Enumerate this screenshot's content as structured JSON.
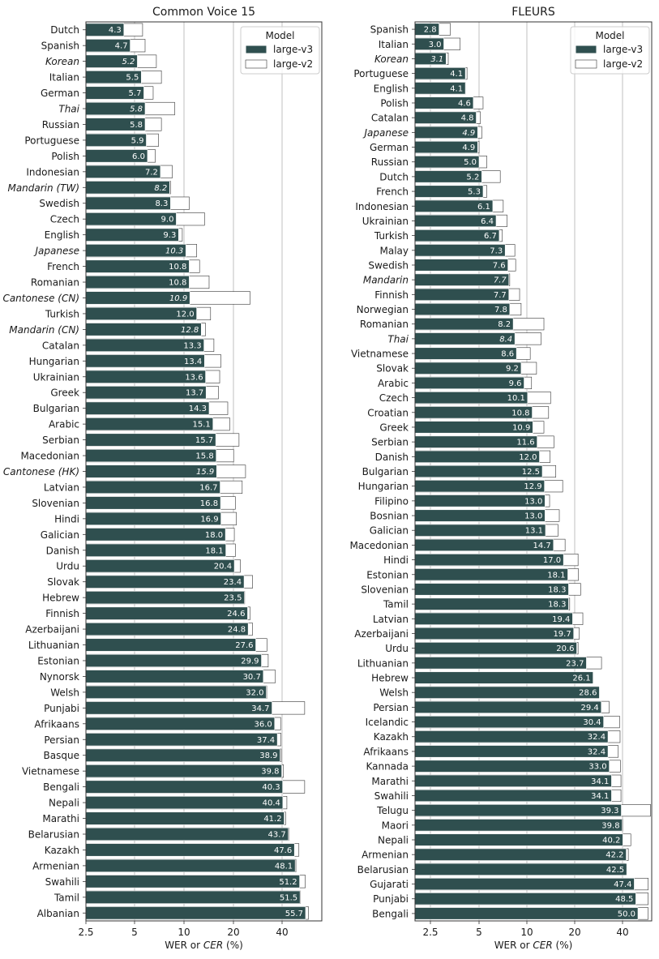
{
  "legend_title": "Model",
  "colors": {
    "large_v3": "#2f4f4f",
    "large_v2": "#ffffff",
    "edge": "#333333",
    "grid": "#b0b0b0"
  },
  "chart_data": [
    {
      "type": "bar",
      "orientation": "horizontal",
      "title": "Common Voice 15",
      "xlabel_plain": "WER or ",
      "xlabel_italic": "CER",
      "xlabel_suffix": " (%)",
      "xscale": "log",
      "xlim": [
        2.5,
        55
      ],
      "xticks": [
        2.5,
        5,
        10,
        20,
        40
      ],
      "xtick_labels": [
        "2.5",
        "5",
        "10",
        "20",
        "40"
      ],
      "grid": "vertical lines at x ticks",
      "legend": {
        "title": "Model",
        "placement": "top-right",
        "entries": [
          "large-v3",
          "large-v2"
        ]
      },
      "series": [
        {
          "name": "large-v3",
          "values": [
            4.3,
            4.7,
            5.2,
            5.5,
            5.7,
            5.8,
            5.8,
            5.9,
            6.0,
            7.2,
            8.2,
            8.3,
            9.0,
            9.3,
            10.3,
            10.8,
            10.8,
            10.9,
            12.0,
            12.8,
            13.3,
            13.4,
            13.6,
            13.7,
            14.3,
            15.1,
            15.7,
            15.8,
            15.9,
            16.7,
            16.8,
            16.9,
            18.0,
            18.1,
            20.4,
            23.4,
            23.5,
            24.6,
            24.8,
            27.6,
            29.9,
            30.7,
            32.0,
            34.7,
            36.0,
            37.4,
            38.9,
            39.8,
            40.3,
            40.4,
            41.2,
            43.7,
            47.6,
            48.1,
            51.2,
            51.5,
            55.7
          ]
        },
        {
          "name": "large-v2",
          "values": [
            5.6,
            5.8,
            6.8,
            7.3,
            6.5,
            8.8,
            7.3,
            7.0,
            6.7,
            8.5,
            8.3,
            10.8,
            13.4,
            9.8,
            12.0,
            12.5,
            14.3,
            25.5,
            14.6,
            13.6,
            15.3,
            16.9,
            16.6,
            16.3,
            18.6,
            19.1,
            21.8,
            20.2,
            23.9,
            22.8,
            20.7,
            21.0,
            20.4,
            20.7,
            22.2,
            26.4,
            23.6,
            25.5,
            26.3,
            32.3,
            32.9,
            36.4,
            32.2,
            55.0,
            39.2,
            39.4,
            39.5,
            40.8,
            55.0,
            42.8,
            42.0,
            43.9,
            50.7,
            48.6,
            55.5,
            51.7,
            58.0
          ]
        },
        {
          "name": "",
          "values": [
            0,
            0,
            1,
            0,
            0,
            1,
            0,
            0,
            0,
            0,
            1,
            0,
            0,
            0,
            1,
            0,
            0,
            1,
            0,
            1,
            0,
            0,
            0,
            0,
            0,
            0,
            0,
            0,
            1,
            0,
            0,
            0,
            0,
            0,
            0,
            0,
            0,
            0,
            0,
            0,
            0,
            0,
            0,
            0,
            0,
            0,
            0,
            0,
            0,
            0,
            0,
            0,
            0,
            0,
            0,
            0,
            0
          ]
        }
      ],
      "categories": [
        {
          "name": "Dutch",
          "suffix": ""
        },
        {
          "name": "Spanish",
          "suffix": ""
        },
        {
          "name": "Korean",
          "suffix": ""
        },
        {
          "name": "Italian",
          "suffix": ""
        },
        {
          "name": "German",
          "suffix": ""
        },
        {
          "name": "Thai",
          "suffix": ""
        },
        {
          "name": "Russian",
          "suffix": ""
        },
        {
          "name": "Portuguese",
          "suffix": ""
        },
        {
          "name": "Polish",
          "suffix": ""
        },
        {
          "name": "Indonesian",
          "suffix": ""
        },
        {
          "name": "Mandarin",
          "suffix": "(TW)"
        },
        {
          "name": "Swedish",
          "suffix": ""
        },
        {
          "name": "Czech",
          "suffix": ""
        },
        {
          "name": "English",
          "suffix": ""
        },
        {
          "name": "Japanese",
          "suffix": ""
        },
        {
          "name": "French",
          "suffix": ""
        },
        {
          "name": "Romanian",
          "suffix": ""
        },
        {
          "name": "Cantonese",
          "suffix": "(CN)"
        },
        {
          "name": "Turkish",
          "suffix": ""
        },
        {
          "name": "Mandarin",
          "suffix": "(CN)"
        },
        {
          "name": "Catalan",
          "suffix": ""
        },
        {
          "name": "Hungarian",
          "suffix": ""
        },
        {
          "name": "Ukrainian",
          "suffix": ""
        },
        {
          "name": "Greek",
          "suffix": ""
        },
        {
          "name": "Bulgarian",
          "suffix": ""
        },
        {
          "name": "Arabic",
          "suffix": ""
        },
        {
          "name": "Serbian",
          "suffix": ""
        },
        {
          "name": "Macedonian",
          "suffix": ""
        },
        {
          "name": "Cantonese",
          "suffix": "(HK)"
        },
        {
          "name": "Latvian",
          "suffix": ""
        },
        {
          "name": "Slovenian",
          "suffix": ""
        },
        {
          "name": "Hindi",
          "suffix": ""
        },
        {
          "name": "Galician",
          "suffix": ""
        },
        {
          "name": "Danish",
          "suffix": ""
        },
        {
          "name": "Urdu",
          "suffix": ""
        },
        {
          "name": "Slovak",
          "suffix": ""
        },
        {
          "name": "Hebrew",
          "suffix": ""
        },
        {
          "name": "Finnish",
          "suffix": ""
        },
        {
          "name": "Azerbaijani",
          "suffix": ""
        },
        {
          "name": "Lithuanian",
          "suffix": ""
        },
        {
          "name": "Estonian",
          "suffix": ""
        },
        {
          "name": "Nynorsk",
          "suffix": ""
        },
        {
          "name": "Welsh",
          "suffix": ""
        },
        {
          "name": "Punjabi",
          "suffix": ""
        },
        {
          "name": "Afrikaans",
          "suffix": ""
        },
        {
          "name": "Persian",
          "suffix": ""
        },
        {
          "name": "Basque",
          "suffix": ""
        },
        {
          "name": "Vietnamese",
          "suffix": ""
        },
        {
          "name": "Bengali",
          "suffix": ""
        },
        {
          "name": "Nepali",
          "suffix": ""
        },
        {
          "name": "Marathi",
          "suffix": ""
        },
        {
          "name": "Belarusian",
          "suffix": ""
        },
        {
          "name": "Kazakh",
          "suffix": ""
        },
        {
          "name": "Armenian",
          "suffix": ""
        },
        {
          "name": "Swahili",
          "suffix": ""
        },
        {
          "name": "Tamil",
          "suffix": ""
        },
        {
          "name": "Albanian",
          "suffix": ""
        }
      ]
    },
    {
      "type": "bar",
      "orientation": "horizontal",
      "title": "FLEURS",
      "xlabel_plain": "WER or ",
      "xlabel_italic": "CER",
      "xlabel_suffix": " (%)",
      "xscale": "log",
      "xlim": [
        2.0,
        55
      ],
      "xticks": [
        2.5,
        5,
        10,
        20,
        40
      ],
      "xtick_labels": [
        "2.5",
        "5",
        "10",
        "20",
        "40"
      ],
      "grid": "vertical lines at x ticks",
      "legend": {
        "title": "Model",
        "placement": "top-right",
        "entries": [
          "large-v3",
          "large-v2"
        ]
      },
      "series": [
        {
          "name": "large-v3",
          "values": [
            2.8,
            3.0,
            3.1,
            4.1,
            4.1,
            4.6,
            4.8,
            4.9,
            4.9,
            5.0,
            5.2,
            5.3,
            6.1,
            6.4,
            6.7,
            7.3,
            7.6,
            7.7,
            7.7,
            7.8,
            8.2,
            8.4,
            8.6,
            9.2,
            9.6,
            10.1,
            10.8,
            10.9,
            11.6,
            12.0,
            12.5,
            12.9,
            13.0,
            13.0,
            13.1,
            14.7,
            17.0,
            18.1,
            18.3,
            18.3,
            19.4,
            19.7,
            20.6,
            23.7,
            26.1,
            28.6,
            29.4,
            30.4,
            32.4,
            32.4,
            33.0,
            34.1,
            34.1,
            39.3,
            39.8,
            40.2,
            42.2,
            42.5,
            47.4,
            48.5,
            50.0
          ]
        },
        {
          "name": "large-v2",
          "values": [
            3.3,
            3.8,
            3.2,
            4.2,
            4.1,
            5.3,
            5.1,
            5.2,
            5.0,
            5.6,
            6.8,
            5.6,
            7.1,
            7.5,
            7.0,
            8.4,
            8.5,
            7.8,
            9.0,
            9.2,
            12.8,
            12.3,
            10.5,
            11.5,
            10.7,
            14.1,
            13.7,
            12.8,
            14.8,
            14.0,
            15.2,
            16.8,
            13.9,
            16.0,
            15.7,
            17.4,
            21.0,
            21.1,
            21.8,
            18.6,
            22.5,
            21.3,
            21.0,
            29.5,
            25.8,
            28.3,
            32.9,
            38.3,
            38.6,
            37.6,
            38.8,
            39.1,
            39.1,
            60.0,
            40.0,
            45.1,
            43.5,
            41.5,
            58.0,
            58.0,
            58.0
          ]
        },
        {
          "name": "",
          "values": [
            0,
            0,
            1,
            0,
            0,
            0,
            0,
            1,
            0,
            0,
            0,
            0,
            0,
            0,
            0,
            0,
            0,
            1,
            0,
            0,
            0,
            1,
            0,
            0,
            0,
            0,
            0,
            0,
            0,
            0,
            0,
            0,
            0,
            0,
            0,
            0,
            0,
            0,
            0,
            0,
            0,
            0,
            0,
            0,
            0,
            0,
            0,
            0,
            0,
            0,
            0,
            0,
            0,
            0,
            0,
            0,
            0,
            0,
            0,
            0,
            0
          ]
        }
      ],
      "categories": [
        {
          "name": "Spanish",
          "suffix": ""
        },
        {
          "name": "Italian",
          "suffix": ""
        },
        {
          "name": "Korean",
          "suffix": ""
        },
        {
          "name": "Portuguese",
          "suffix": ""
        },
        {
          "name": "English",
          "suffix": ""
        },
        {
          "name": "Polish",
          "suffix": ""
        },
        {
          "name": "Catalan",
          "suffix": ""
        },
        {
          "name": "Japanese",
          "suffix": ""
        },
        {
          "name": "German",
          "suffix": ""
        },
        {
          "name": "Russian",
          "suffix": ""
        },
        {
          "name": "Dutch",
          "suffix": ""
        },
        {
          "name": "French",
          "suffix": ""
        },
        {
          "name": "Indonesian",
          "suffix": ""
        },
        {
          "name": "Ukrainian",
          "suffix": ""
        },
        {
          "name": "Turkish",
          "suffix": ""
        },
        {
          "name": "Malay",
          "suffix": ""
        },
        {
          "name": "Swedish",
          "suffix": ""
        },
        {
          "name": "Mandarin",
          "suffix": ""
        },
        {
          "name": "Finnish",
          "suffix": ""
        },
        {
          "name": "Norwegian",
          "suffix": ""
        },
        {
          "name": "Romanian",
          "suffix": ""
        },
        {
          "name": "Thai",
          "suffix": ""
        },
        {
          "name": "Vietnamese",
          "suffix": ""
        },
        {
          "name": "Slovak",
          "suffix": ""
        },
        {
          "name": "Arabic",
          "suffix": ""
        },
        {
          "name": "Czech",
          "suffix": ""
        },
        {
          "name": "Croatian",
          "suffix": ""
        },
        {
          "name": "Greek",
          "suffix": ""
        },
        {
          "name": "Serbian",
          "suffix": ""
        },
        {
          "name": "Danish",
          "suffix": ""
        },
        {
          "name": "Bulgarian",
          "suffix": ""
        },
        {
          "name": "Hungarian",
          "suffix": ""
        },
        {
          "name": "Filipino",
          "suffix": ""
        },
        {
          "name": "Bosnian",
          "suffix": ""
        },
        {
          "name": "Galician",
          "suffix": ""
        },
        {
          "name": "Macedonian",
          "suffix": ""
        },
        {
          "name": "Hindi",
          "suffix": ""
        },
        {
          "name": "Estonian",
          "suffix": ""
        },
        {
          "name": "Slovenian",
          "suffix": ""
        },
        {
          "name": "Tamil",
          "suffix": ""
        },
        {
          "name": "Latvian",
          "suffix": ""
        },
        {
          "name": "Azerbaijani",
          "suffix": ""
        },
        {
          "name": "Urdu",
          "suffix": ""
        },
        {
          "name": "Lithuanian",
          "suffix": ""
        },
        {
          "name": "Hebrew",
          "suffix": ""
        },
        {
          "name": "Welsh",
          "suffix": ""
        },
        {
          "name": "Persian",
          "suffix": ""
        },
        {
          "name": "Icelandic",
          "suffix": ""
        },
        {
          "name": "Kazakh",
          "suffix": ""
        },
        {
          "name": "Afrikaans",
          "suffix": ""
        },
        {
          "name": "Kannada",
          "suffix": ""
        },
        {
          "name": "Marathi",
          "suffix": ""
        },
        {
          "name": "Swahili",
          "suffix": ""
        },
        {
          "name": "Telugu",
          "suffix": ""
        },
        {
          "name": "Maori",
          "suffix": ""
        },
        {
          "name": "Nepali",
          "suffix": ""
        },
        {
          "name": "Armenian",
          "suffix": ""
        },
        {
          "name": "Belarusian",
          "suffix": ""
        },
        {
          "name": "Gujarati",
          "suffix": ""
        },
        {
          "name": "Punjabi",
          "suffix": ""
        },
        {
          "name": "Bengali",
          "suffix": ""
        }
      ]
    }
  ]
}
